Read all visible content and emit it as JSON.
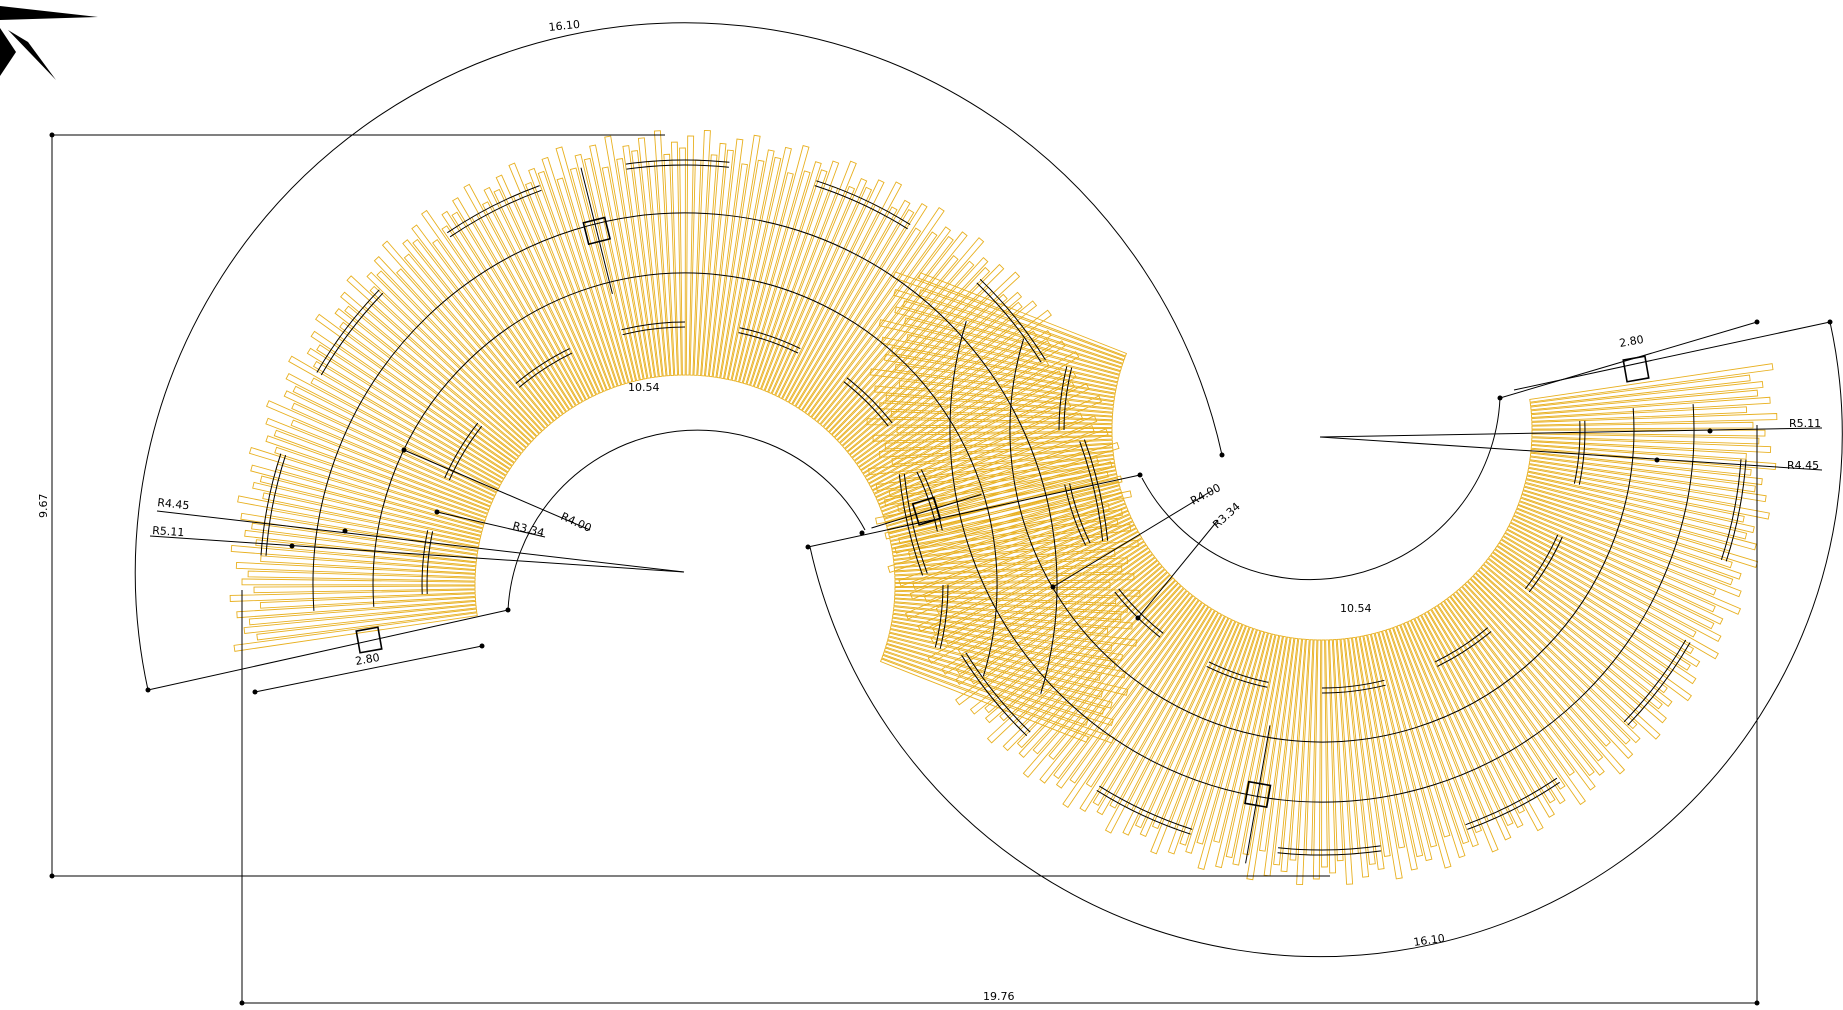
{
  "colors": {
    "slat": "#e8b020",
    "line": "#000000",
    "background": "#ffffff"
  },
  "icons": {
    "north_arrow": "north-arrow-icon"
  },
  "dimensions": {
    "overall_width": "19.76",
    "overall_height": "9.67",
    "arc_outer_top": "16.10",
    "arc_outer_bottom": "16.10",
    "arc_inner_top": "10.54",
    "arc_inner_bottom": "10.54",
    "width_left": "2.80",
    "width_right": "2.80",
    "left_r1": "R4.45",
    "left_r2": "R5.11",
    "left_r3": "R4.00",
    "left_r4": "R3.34",
    "right_r1": "R5.11",
    "right_r2": "R4.45",
    "right_r3": "R4.00",
    "right_r4": "R3.34"
  }
}
